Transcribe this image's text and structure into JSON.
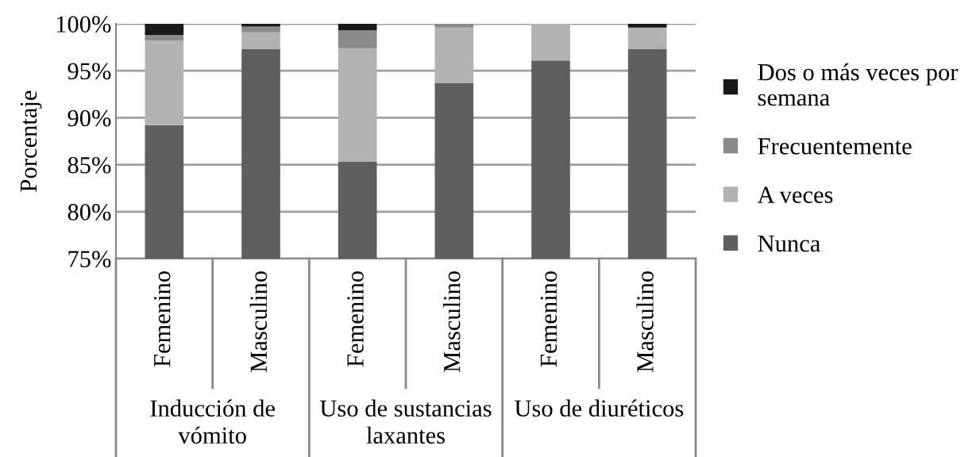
{
  "chart_data": {
    "type": "bar",
    "stacked": true,
    "ylabel": "Porcentaje",
    "categories": [
      "Femenino",
      "Masculino",
      "Femenino",
      "Masculino",
      "Femenino",
      "Masculino"
    ],
    "annotations": [
      "Inducción de\nvómito",
      "Uso de sustancias\nlaxantes",
      "Uso de diuréticos"
    ],
    "series": [
      {
        "name": "Nunca",
        "color": "#5f5f5f",
        "values": [
          89.2,
          97.3,
          85.3,
          93.7,
          96.1,
          97.3
        ]
      },
      {
        "name": "A veces",
        "color": "#b2b2b2",
        "values": [
          9.0,
          1.8,
          12.1,
          5.9,
          3.9,
          2.3
        ],
        "base": [
          89.2,
          97.3,
          85.3,
          93.7,
          96.1,
          97.3
        ]
      },
      {
        "name": "Frecuentemente",
        "color": "#8a8a8a",
        "values": [
          0.6,
          0.6,
          1.9,
          0.4,
          null,
          null
        ],
        "base": [
          98.2,
          99.1,
          97.4,
          99.6,
          null,
          null
        ]
      },
      {
        "name": "Dos o más veces por semana",
        "color": "#1a1a1a",
        "values": [
          1.2,
          0.3,
          0.7,
          null,
          null,
          0.4
        ],
        "base": [
          98.8,
          99.7,
          99.3,
          null,
          null,
          99.6
        ]
      }
    ],
    "ylim": [
      75,
      100
    ],
    "yticks": [
      {
        "value": 75,
        "label": "75%"
      },
      {
        "value": 80,
        "label": "80%"
      },
      {
        "value": 85,
        "label": "85%"
      },
      {
        "value": 90,
        "label": "90%"
      },
      {
        "value": 95,
        "label": "95%"
      },
      {
        "value": 100,
        "label": "100%"
      }
    ],
    "grid": "y",
    "legend": "right"
  }
}
